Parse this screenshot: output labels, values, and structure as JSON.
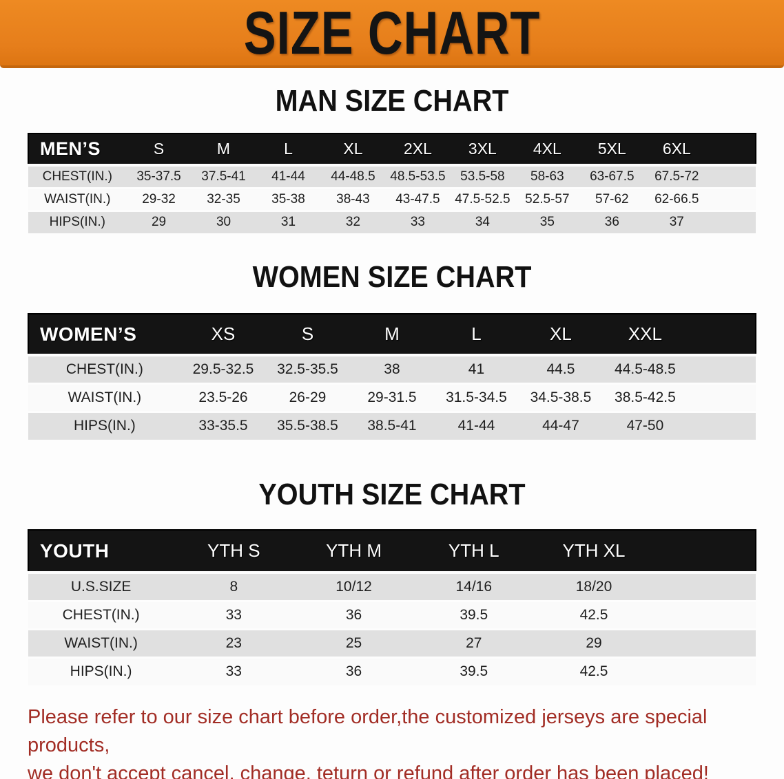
{
  "banner": {
    "title": "SIZE CHART"
  },
  "sections": {
    "men": {
      "heading": "MAN SIZE CHART",
      "table": {
        "label": "MEN’S",
        "sizes": [
          "S",
          "M",
          "L",
          "XL",
          "2XL",
          "3XL",
          "4XL",
          "5XL",
          "6XL"
        ],
        "rows": [
          {
            "label": "CHEST(IN.)",
            "values": [
              "35-37.5",
              "37.5-41",
              "41-44",
              "44-48.5",
              "48.5-53.5",
              "53.5-58",
              "58-63",
              "63-67.5",
              "67.5-72"
            ]
          },
          {
            "label": "WAIST(IN.)",
            "values": [
              "29-32",
              "32-35",
              "35-38",
              "38-43",
              "43-47.5",
              "47.5-52.5",
              "52.5-57",
              "57-62",
              "62-66.5"
            ]
          },
          {
            "label": "HIPS(IN.)",
            "values": [
              "29",
              "30",
              "31",
              "32",
              "33",
              "34",
              "35",
              "36",
              "37"
            ]
          }
        ]
      }
    },
    "women": {
      "heading": "WOMEN SIZE CHART",
      "table": {
        "label": "WOMEN’S",
        "sizes": [
          "XS",
          "S",
          "M",
          "L",
          "XL",
          "XXL"
        ],
        "rows": [
          {
            "label": "CHEST(IN.)",
            "values": [
              "29.5-32.5",
              "32.5-35.5",
              "38",
              "41",
              "44.5",
              "44.5-48.5"
            ]
          },
          {
            "label": "WAIST(IN.)",
            "values": [
              "23.5-26",
              "26-29",
              "29-31.5",
              "31.5-34.5",
              "34.5-38.5",
              "38.5-42.5"
            ]
          },
          {
            "label": "HIPS(IN.)",
            "values": [
              "33-35.5",
              "35.5-38.5",
              "38.5-41",
              "41-44",
              "44-47",
              "47-50"
            ]
          }
        ]
      }
    },
    "youth": {
      "heading": "YOUTH SIZE CHART",
      "table": {
        "label": "YOUTH",
        "sizes": [
          "YTH S",
          "YTH M",
          "YTH L",
          "YTH XL"
        ],
        "rows": [
          {
            "label": "U.S.SIZE",
            "values": [
              "8",
              "10/12",
              "14/16",
              "18/20"
            ]
          },
          {
            "label": "CHEST(IN.)",
            "values": [
              "33",
              "36",
              "39.5",
              "42.5"
            ]
          },
          {
            "label": "WAIST(IN.)",
            "values": [
              "23",
              "25",
              "27",
              "29"
            ]
          },
          {
            "label": "HIPS(IN.)",
            "values": [
              "33",
              "36",
              "39.5",
              "42.5"
            ]
          }
        ]
      }
    }
  },
  "disclaimer": {
    "line1": "Please refer to our size chart before order,the customized jerseys are special products,",
    "line2": "we don't accept cancel, change, teturn or refund after order has been placed!"
  },
  "colors": {
    "banner_orange": "#E67E1B",
    "header_black": "#141414",
    "row_gray": "#E0E0E0",
    "row_white": "#FAFAFA",
    "disclaimer_red": "#A22D25"
  }
}
